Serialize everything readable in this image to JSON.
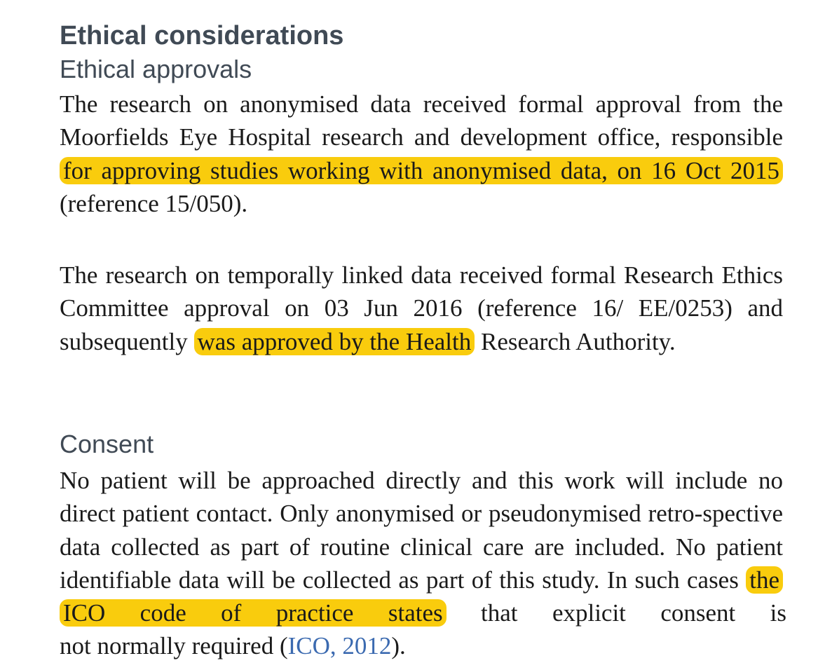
{
  "heading": "Ethical considerations",
  "approvals": {
    "subheading": "Ethical approvals",
    "para1": {
      "text_a": "The research on anonymised data received formal approval from the Moorfields Eye Hospital research and development office, responsible ",
      "highlight": "for approving studies working with anonymised data, on 16 Oct 2015",
      "text_b": " (reference 15/050)."
    },
    "para2": {
      "text_a": "The research on temporally linked data  received formal Research Ethics Committee approval on 03 Jun 2016 (reference 16/ EE/0253) and subsequently ",
      "highlight": "was approved by the Health",
      "text_b": " Research Authority."
    }
  },
  "consent": {
    "subheading": "Consent",
    "para": {
      "text_a": "No patient will be approached directly and this work will include no direct patient contact. Only anonymised or pseudonymised retro-spective data collected as part of routine clinical care are included. No patient identifiable data will be collected as part of this study. In such cases ",
      "highlight": "the ICO code of practice states",
      "text_b": " that explicit consent is",
      "text_cut": "not normally required (",
      "link": "ICO, 2012",
      "text_cut_end": ")."
    }
  },
  "colors": {
    "highlight": "#f9cc0d",
    "heading": "#404a55",
    "body_text": "#1a1a1a",
    "link": "#3b6ab0"
  }
}
